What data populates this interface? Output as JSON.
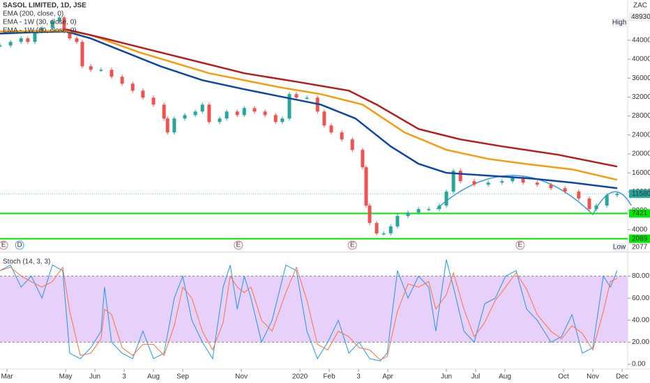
{
  "chart_data": [
    {
      "type": "line",
      "title": "SASOL LIMITED, 1D, JSE",
      "currency": "ZAC",
      "high_label": "High",
      "low_label": "Low",
      "xlim": [
        -0.24,
        21.19
      ],
      "ylim": [
        0,
        52500
      ],
      "yticks": [
        4000,
        8000,
        12000,
        16000,
        20000,
        24000,
        28000,
        32000,
        36000,
        40000,
        44000
      ],
      "high": 48930,
      "low": 2077,
      "last": 11580,
      "last_color": "#26a69a",
      "levels": [
        7421,
        2089
      ],
      "level_color": "#00e600",
      "events": [
        {
          "x": -0.12,
          "label": "E",
          "color": "#e57373"
        },
        {
          "x": 0.43,
          "label": "D",
          "color": "#42a5f5"
        },
        {
          "x": 7.9,
          "label": "E",
          "color": "#e57373"
        },
        {
          "x": 11.79,
          "label": "E",
          "color": "#e57373"
        },
        {
          "x": 17.52,
          "label": "E",
          "color": "#e57373"
        }
      ],
      "series": [
        {
          "style": "candle",
          "up_color": "#26a69a",
          "down_color": "#ef5350",
          "x": [
            -0.24,
            0.12,
            0.48,
            0.71,
            0.95,
            1.19,
            1.55,
            1.79,
            1.95,
            2.14,
            2.38,
            2.57,
            2.86,
            3.21,
            3.57,
            3.93,
            4.29,
            4.64,
            5.0,
            5.36,
            5.48,
            5.71,
            6.07,
            6.43,
            6.67,
            6.9,
            7.26,
            7.5,
            7.86,
            8.1,
            8.45,
            8.81,
            9.17,
            9.4,
            9.64,
            9.88,
            10.24,
            10.6,
            10.83,
            11.07,
            11.43,
            11.79,
            12.14,
            12.26,
            12.38,
            12.62,
            12.86,
            13.1,
            13.33,
            13.69,
            14.05,
            14.4,
            14.76,
            15.0,
            15.24,
            15.48,
            15.95,
            16.43,
            16.9,
            17.26,
            17.62,
            18.1,
            18.57,
            19.05,
            19.52,
            19.88,
            20.12,
            20.48,
            20.83
          ],
          "values": [
            42900,
            43650,
            44400,
            43650,
            45850,
            46590,
            48060,
            48800,
            45850,
            44400,
            43650,
            38500,
            37760,
            37760,
            36300,
            34820,
            33350,
            31880,
            30400,
            27470,
            24530,
            27470,
            28200,
            28940,
            30400,
            26740,
            27470,
            28940,
            28200,
            29680,
            28940,
            28200,
            26740,
            27470,
            32620,
            31880,
            31880,
            28940,
            26000,
            24530,
            23060,
            20850,
            17180,
            9090,
            5410,
            3210,
            3210,
            4680,
            6880,
            7610,
            8350,
            8350,
            9090,
            12030,
            16440,
            14240,
            13500,
            13940,
            14240,
            14970,
            13940,
            13500,
            12760,
            12030,
            10560,
            8350,
            9090,
            11290,
            11580
          ]
        },
        {
          "name": "EMA (200, close, 0)",
          "color": "#0d47a1",
          "x": [
            -0.24,
            0.95,
            2.02,
            2.86,
            4.05,
            5.24,
            6.67,
            8.1,
            9.52,
            10.71,
            11.9,
            13.1,
            14.05,
            15.0,
            16.43,
            17.86,
            19.29,
            20.83
          ],
          "values": [
            45410,
            45710,
            45850,
            44380,
            41440,
            38500,
            35560,
            33650,
            31880,
            30410,
            27470,
            21590,
            17910,
            16000,
            15410,
            14820,
            13940,
            12760
          ]
        },
        {
          "name": "EMA - 1W (30, close, 0)",
          "color": "#f39c12",
          "x": [
            -0.24,
            2.02,
            2.86,
            4.52,
            6.9,
            9.29,
            10.71,
            12.14,
            13.57,
            15.0,
            16.43,
            17.86,
            19.29,
            20.83
          ],
          "values": [
            45850,
            46000,
            45120,
            41440,
            37030,
            34090,
            32620,
            30410,
            24530,
            20850,
            18940,
            17760,
            16740,
            14530
          ]
        },
        {
          "name": "EMA - 1W (60, close, 0)",
          "color": "#b71c1c",
          "x": [
            2.02,
            3.33,
            5.71,
            8.1,
            10.0,
            11.67,
            12.62,
            14.05,
            15.48,
            16.9,
            18.81,
            20.83
          ],
          "values": [
            46290,
            44380,
            40710,
            37030,
            35120,
            33350,
            30410,
            25260,
            23060,
            21590,
            19820,
            17320
          ]
        }
      ]
    },
    {
      "type": "line",
      "title": "Stoch (14, 3, 3)",
      "xlim": [
        -0.24,
        21.19
      ],
      "ylim": [
        -4.4,
        98
      ],
      "yticks": [
        {
          "value": 0,
          "label": "0.00"
        },
        {
          "value": 20,
          "label": "20.00"
        },
        {
          "value": 40,
          "label": "40.00"
        },
        {
          "value": 60,
          "label": "60.00"
        },
        {
          "value": 80,
          "label": "80.00"
        }
      ],
      "band": [
        20,
        80
      ],
      "band_color": "#e1c4f7",
      "xticks": [
        {
          "value": 0,
          "label": "Mar"
        },
        {
          "value": 2,
          "label": "May"
        },
        {
          "value": 3,
          "label": "Jun"
        },
        {
          "value": 4,
          "label": "3"
        },
        {
          "value": 5,
          "label": "Aug"
        },
        {
          "value": 6,
          "label": "Sep"
        },
        {
          "value": 8,
          "label": "Nov"
        },
        {
          "value": 10,
          "label": "2020"
        },
        {
          "value": 11,
          "label": "Feb"
        },
        {
          "value": 12,
          "label": "3"
        },
        {
          "value": 13,
          "label": "Apr"
        },
        {
          "value": 15,
          "label": "Jun"
        },
        {
          "value": 16,
          "label": "Jul"
        },
        {
          "value": 17,
          "label": "Aug"
        },
        {
          "value": 19,
          "label": "Oct"
        },
        {
          "value": 20,
          "label": "Nov"
        },
        {
          "value": 21,
          "label": "Dec"
        }
      ],
      "series": [
        {
          "color": "#2196f3",
          "x": [
            -0.24,
            0.12,
            0.48,
            0.83,
            1.19,
            1.55,
            1.9,
            2.14,
            2.5,
            2.86,
            3.21,
            3.33,
            3.57,
            3.93,
            4.29,
            4.64,
            5.0,
            5.36,
            5.71,
            6.0,
            6.31,
            6.67,
            7.02,
            7.38,
            7.62,
            7.86,
            8.1,
            8.33,
            8.69,
            9.05,
            9.52,
            9.88,
            10.24,
            10.6,
            10.95,
            11.31,
            11.67,
            12.02,
            12.38,
            12.74,
            12.98,
            13.33,
            13.69,
            14.05,
            14.4,
            14.64,
            15.0,
            15.24,
            15.6,
            15.95,
            16.31,
            16.67,
            17.02,
            17.38,
            17.74,
            18.1,
            18.57,
            18.93,
            19.29,
            19.64,
            20.0,
            20.36,
            20.6,
            20.83
          ],
          "values": [
            85,
            90,
            70,
            80,
            60,
            90,
            85,
            10,
            5,
            15,
            30,
            70,
            20,
            10,
            5,
            30,
            5,
            10,
            60,
            80,
            40,
            20,
            5,
            70,
            90,
            50,
            80,
            60,
            20,
            40,
            90,
            85,
            30,
            5,
            20,
            40,
            10,
            20,
            5,
            3,
            10,
            85,
            60,
            80,
            70,
            30,
            95,
            70,
            30,
            20,
            55,
            60,
            80,
            85,
            50,
            40,
            20,
            25,
            45,
            10,
            15,
            80,
            70,
            85
          ]
        },
        {
          "color": "#ff7043",
          "x": [
            -0.24,
            0.12,
            0.48,
            0.83,
            1.19,
            1.55,
            1.9,
            2.14,
            2.5,
            2.86,
            3.21,
            3.33,
            3.57,
            3.93,
            4.29,
            4.64,
            5.0,
            5.36,
            5.71,
            6.0,
            6.31,
            6.67,
            7.02,
            7.38,
            7.62,
            7.86,
            8.1,
            8.33,
            8.69,
            9.05,
            9.52,
            9.88,
            10.24,
            10.6,
            10.95,
            11.31,
            11.67,
            12.02,
            12.38,
            12.74,
            12.98,
            13.33,
            13.69,
            14.05,
            14.4,
            14.64,
            15.0,
            15.24,
            15.6,
            15.95,
            16.31,
            16.67,
            17.02,
            17.38,
            17.74,
            18.1,
            18.57,
            18.93,
            19.29,
            19.64,
            20.0,
            20.36,
            20.6,
            20.83
          ],
          "values": [
            85,
            88,
            80,
            75,
            70,
            75,
            88,
            48,
            8,
            10,
            23,
            50,
            45,
            15,
            8,
            18,
            18,
            8,
            35,
            70,
            60,
            30,
            13,
            38,
            80,
            70,
            65,
            70,
            40,
            30,
            65,
            88,
            58,
            18,
            13,
            30,
            25,
            15,
            13,
            4,
            7,
            48,
            73,
            70,
            75,
            50,
            63,
            83,
            50,
            25,
            38,
            58,
            70,
            83,
            68,
            45,
            30,
            23,
            35,
            28,
            13,
            48,
            75,
            78
          ]
        }
      ]
    }
  ]
}
